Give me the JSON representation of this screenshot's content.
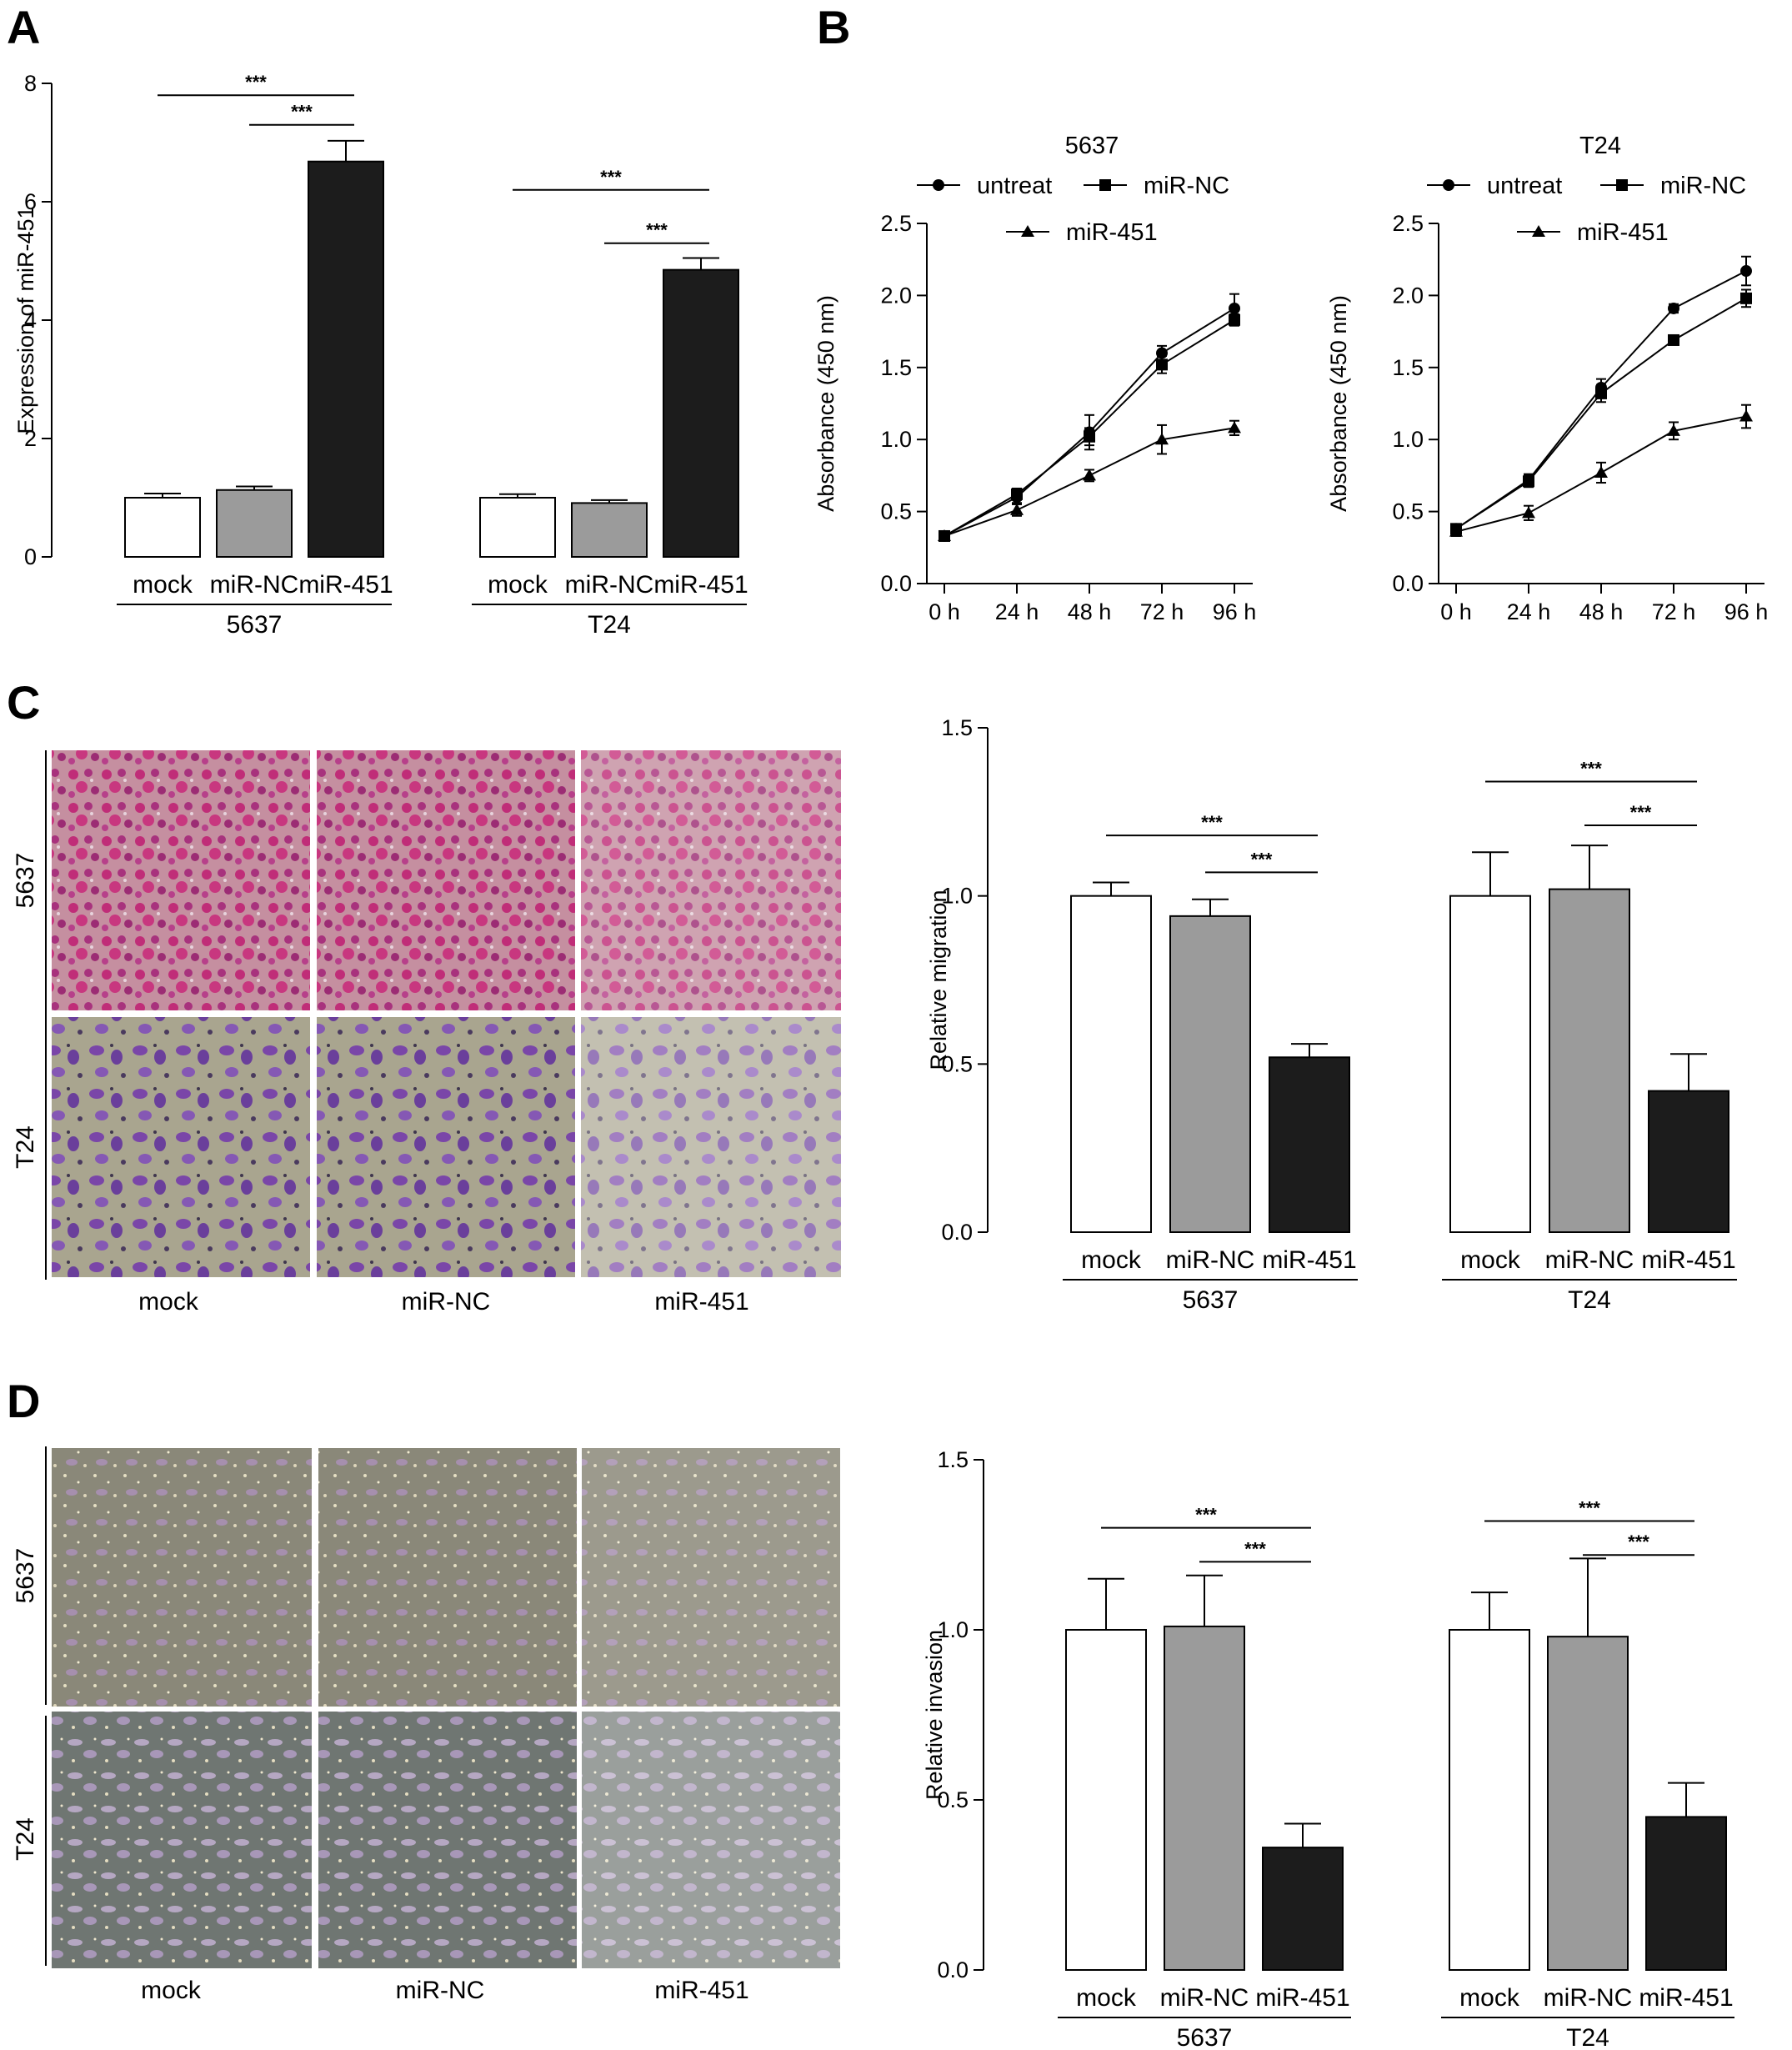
{
  "panel_labels": [
    "A",
    "B",
    "C",
    "D"
  ],
  "chart_data": [
    {
      "id": "A",
      "type": "bar",
      "ylabel": "Expression of miR-451",
      "ylim": [
        0,
        8
      ],
      "yticks": [
        "0",
        "2",
        "4",
        "6",
        "8"
      ],
      "ytick_values": [
        0,
        2,
        4,
        6,
        8
      ],
      "categories": [
        "mock",
        "miR-NC",
        "miR-451"
      ],
      "groups": [
        {
          "name": "5637",
          "values": [
            1.0,
            1.13,
            6.68
          ],
          "errors": [
            0.07,
            0.06,
            0.35
          ]
        },
        {
          "name": "T24",
          "values": [
            1.0,
            0.91,
            4.85
          ],
          "errors": [
            0.06,
            0.05,
            0.2
          ]
        }
      ],
      "colors": [
        "#ffffff",
        "#9b9b9b",
        "#1c1c1c"
      ],
      "significance": [
        {
          "group": 0,
          "from": 0,
          "to": 2,
          "label": "***",
          "y": 7.8
        },
        {
          "group": 0,
          "from": 1,
          "to": 2,
          "label": "***",
          "y": 7.3
        },
        {
          "group": 1,
          "from": 0,
          "to": 2,
          "label": "***",
          "y": 6.2
        },
        {
          "group": 1,
          "from": 1,
          "to": 2,
          "label": "***",
          "y": 5.3
        }
      ]
    },
    {
      "id": "B1",
      "type": "line",
      "title": "5637",
      "ylabel": "Absorbance (450 nm)",
      "ylim": [
        0,
        2.5
      ],
      "yticks": [
        "0.0",
        "0.5",
        "1.0",
        "1.5",
        "2.0",
        "2.5"
      ],
      "ytick_values": [
        0,
        0.5,
        1.0,
        1.5,
        2.0,
        2.5
      ],
      "x": [
        "0 h",
        "24 h",
        "48 h",
        "72 h",
        "96 h"
      ],
      "series": [
        {
          "name": "untreat",
          "marker": "circle",
          "values": [
            0.33,
            0.6,
            1.05,
            1.6,
            1.91
          ],
          "errors": [
            0.02,
            0.04,
            0.12,
            0.05,
            0.1
          ]
        },
        {
          "name": "miR-NC",
          "marker": "square",
          "values": [
            0.33,
            0.62,
            1.02,
            1.52,
            1.83
          ],
          "errors": [
            0.02,
            0.04,
            0.06,
            0.06,
            0.04
          ]
        },
        {
          "name": "miR-451",
          "marker": "triangle",
          "values": [
            0.33,
            0.51,
            0.75,
            1.0,
            1.08
          ],
          "errors": [
            0.02,
            0.04,
            0.04,
            0.1,
            0.05
          ]
        }
      ]
    },
    {
      "id": "B2",
      "type": "line",
      "title": "T24",
      "ylabel": "Absorbance (450 nm)",
      "ylim": [
        0,
        2.5
      ],
      "yticks": [
        "0.0",
        "0.5",
        "1.0",
        "1.5",
        "2.0",
        "2.5"
      ],
      "ytick_values": [
        0,
        0.5,
        1.0,
        1.5,
        2.0,
        2.5
      ],
      "x": [
        "0 h",
        "24 h",
        "48 h",
        "72 h",
        "96 h"
      ],
      "series": [
        {
          "name": "untreat",
          "marker": "circle",
          "values": [
            0.38,
            0.72,
            1.36,
            1.91,
            2.17
          ],
          "errors": [
            0.03,
            0.04,
            0.06,
            0.03,
            0.1
          ]
        },
        {
          "name": "miR-NC",
          "marker": "square",
          "values": [
            0.38,
            0.71,
            1.32,
            1.69,
            1.98
          ],
          "errors": [
            0.03,
            0.04,
            0.06,
            0.02,
            0.06
          ]
        },
        {
          "name": "miR-451",
          "marker": "triangle",
          "values": [
            0.36,
            0.49,
            0.77,
            1.06,
            1.16
          ],
          "errors": [
            0.03,
            0.05,
            0.07,
            0.06,
            0.08
          ]
        }
      ]
    },
    {
      "id": "C",
      "type": "bar",
      "ylabel": "Relative migration",
      "ylim": [
        0,
        1.5
      ],
      "yticks": [
        "0.0",
        "0.5",
        "1.0",
        "1.5"
      ],
      "ytick_values": [
        0,
        0.5,
        1.0,
        1.5
      ],
      "categories": [
        "mock",
        "miR-NC",
        "miR-451"
      ],
      "groups": [
        {
          "name": "5637",
          "values": [
            1.0,
            0.94,
            0.52
          ],
          "errors": [
            0.04,
            0.05,
            0.04
          ]
        },
        {
          "name": "T24",
          "values": [
            1.0,
            1.02,
            0.42
          ],
          "errors": [
            0.13,
            0.13,
            0.11
          ]
        }
      ],
      "colors": [
        "#ffffff",
        "#9b9b9b",
        "#1c1c1c"
      ],
      "significance": [
        {
          "group": 0,
          "from": 0,
          "to": 2,
          "label": "***",
          "y": 1.18
        },
        {
          "group": 0,
          "from": 1,
          "to": 2,
          "label": "***",
          "y": 1.07
        },
        {
          "group": 1,
          "from": 0,
          "to": 2,
          "label": "***",
          "y": 1.34
        },
        {
          "group": 1,
          "from": 1,
          "to": 2,
          "label": "***",
          "y": 1.21
        }
      ]
    },
    {
      "id": "D",
      "type": "bar",
      "ylabel": "Relative invasion",
      "ylim": [
        0,
        1.5
      ],
      "yticks": [
        "0.0",
        "0.5",
        "1.0",
        "1.5"
      ],
      "ytick_values": [
        0,
        0.5,
        1.0,
        1.5
      ],
      "categories": [
        "mock",
        "miR-NC",
        "miR-451"
      ],
      "groups": [
        {
          "name": "5637",
          "values": [
            1.0,
            1.01,
            0.36
          ],
          "errors": [
            0.15,
            0.15,
            0.07
          ]
        },
        {
          "name": "T24",
          "values": [
            1.0,
            0.98,
            0.45
          ],
          "errors": [
            0.11,
            0.23,
            0.1
          ]
        }
      ],
      "colors": [
        "#ffffff",
        "#9b9b9b",
        "#1c1c1c"
      ],
      "significance": [
        {
          "group": 0,
          "from": 0,
          "to": 2,
          "label": "***",
          "y": 1.3
        },
        {
          "group": 0,
          "from": 1,
          "to": 2,
          "label": "***",
          "y": 1.2
        },
        {
          "group": 1,
          "from": 0,
          "to": 2,
          "label": "***",
          "y": 1.32
        },
        {
          "group": 1,
          "from": 1,
          "to": 2,
          "label": "***",
          "y": 1.22
        }
      ]
    }
  ],
  "micrographs": {
    "C": {
      "row_labels": [
        "5637",
        "T24"
      ],
      "col_labels": [
        "mock",
        "miR-NC",
        "miR-451"
      ],
      "row_styles": [
        "crystal-violet-dense",
        "crystal-violet-sparse"
      ]
    },
    "D": {
      "row_labels": [
        "5637",
        "T24"
      ],
      "col_labels": [
        "mock",
        "miR-NC",
        "miR-451"
      ],
      "row_styles": [
        "invasion-grey",
        "invasion-dark"
      ]
    }
  }
}
